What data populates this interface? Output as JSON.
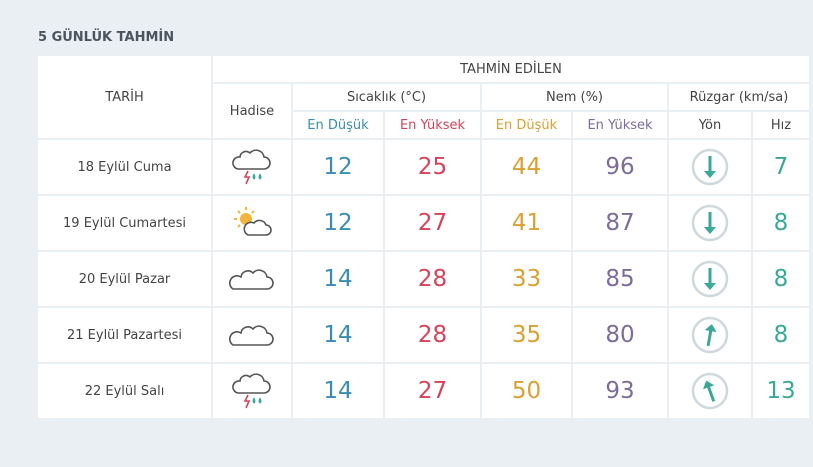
{
  "header": {
    "title": "5 GÜNLÜK TAHMİN"
  },
  "table": {
    "headings": {
      "date": "TARİH",
      "forecast": "TAHMİN EDİLEN",
      "event": "Hadise",
      "temperature": "Sıcaklık (°C)",
      "humidity": "Nem (%)",
      "wind": "Rüzgar (km/sa)",
      "temp_min": "En Düşük",
      "temp_max": "En Yüksek",
      "hum_min": "En Düşük",
      "hum_max": "En Yüksek",
      "direction": "Yön",
      "speed": "Hız"
    },
    "rows": [
      {
        "date": "18 Eylül Cuma",
        "temp_min": 12,
        "temp_max": 25,
        "hum_min": 44,
        "hum_max": 96,
        "speed": 7
      },
      {
        "date": "19 Eylül Cumartesi",
        "temp_min": 12,
        "temp_max": 27,
        "hum_min": 41,
        "hum_max": 87,
        "speed": 8
      },
      {
        "date": "20 Eylül Pazar",
        "temp_min": 14,
        "temp_max": 28,
        "hum_min": 33,
        "hum_max": 85,
        "speed": 8
      },
      {
        "date": "21 Eylül Pazartesi",
        "temp_min": 14,
        "temp_max": 28,
        "hum_min": 35,
        "hum_max": 80,
        "speed": 8
      },
      {
        "date": "22 Eylül Salı",
        "temp_min": 14,
        "temp_max": 27,
        "hum_min": 50,
        "hum_max": 93,
        "speed": 13
      }
    ]
  }
}
